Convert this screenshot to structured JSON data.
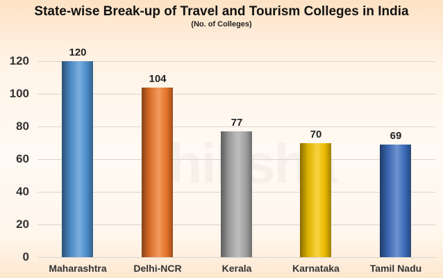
{
  "chart_data": {
    "type": "bar",
    "title": "State-wise Break-up of Travel and Tourism Colleges in India",
    "subtitle": "(No. of Colleges)",
    "xlabel": "",
    "ylabel": "",
    "categories": [
      "Maharashtra",
      "Delhi-NCR",
      "Kerala",
      "Karnataka",
      "Tamil Nadu"
    ],
    "values": [
      120,
      104,
      77,
      70,
      69
    ],
    "value_labels": [
      "120",
      "104",
      "77",
      "70",
      "69"
    ],
    "bar_colors": [
      "#4f93d3",
      "#f0782a",
      "#a9a9a9",
      "#f5c400",
      "#3d6fc0"
    ],
    "ylim": [
      0,
      120
    ],
    "yticks": [
      0,
      20,
      40,
      60,
      80,
      100,
      120
    ],
    "ytick_labels": [
      "0",
      "20",
      "40",
      "60",
      "80",
      "100",
      "120"
    ],
    "grid": true,
    "legend": "none"
  },
  "watermark": "shiksha"
}
